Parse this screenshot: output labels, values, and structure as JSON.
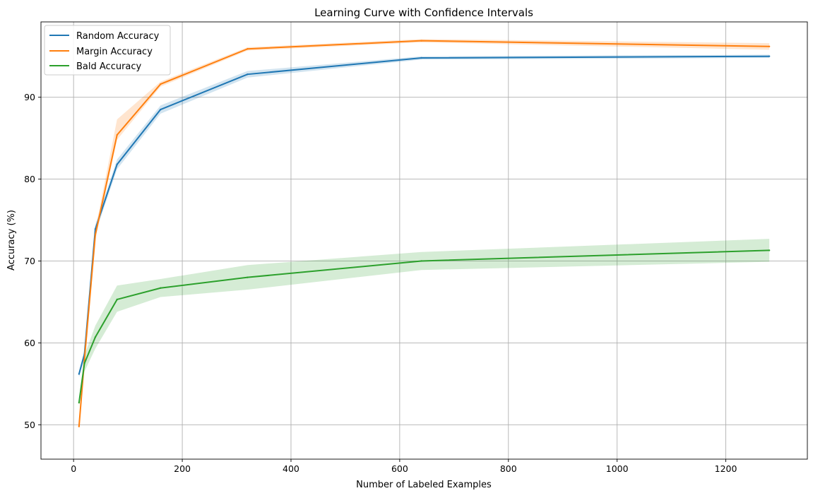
{
  "chart_data": {
    "type": "line",
    "title": "Learning Curve with Confidence Intervals",
    "xlabel": "Number of Labeled Examples",
    "ylabel": "Accuracy (%)",
    "xlim": [
      -60,
      1350
    ],
    "ylim": [
      45.8,
      99.2
    ],
    "xticks": [
      0,
      200,
      400,
      600,
      800,
      1000,
      1200
    ],
    "yticks": [
      50,
      60,
      70,
      80,
      90
    ],
    "grid": true,
    "legend_position": "top-left",
    "x": [
      10,
      20,
      40,
      80,
      160,
      320,
      640,
      1280
    ],
    "series": [
      {
        "name": "Random Accuracy",
        "color": "#1f77b4",
        "values": [
          56.2,
          58.6,
          73.9,
          81.8,
          88.5,
          92.8,
          94.8,
          95.0
        ],
        "ci_lower": [
          55.8,
          58.1,
          73.4,
          81.2,
          88.0,
          92.4,
          94.6,
          94.8
        ],
        "ci_upper": [
          56.6,
          59.1,
          74.4,
          82.4,
          89.0,
          93.2,
          95.0,
          95.2
        ]
      },
      {
        "name": "Margin Accuracy",
        "color": "#ff7f0e",
        "values": [
          49.8,
          58.0,
          73.2,
          85.4,
          91.6,
          95.9,
          96.9,
          96.2
        ],
        "ci_lower": [
          49.3,
          57.5,
          72.6,
          84.8,
          91.3,
          95.7,
          96.7,
          95.8
        ],
        "ci_upper": [
          50.3,
          58.5,
          73.8,
          87.3,
          91.9,
          96.1,
          97.1,
          96.6
        ]
      },
      {
        "name": "Bald Accuracy",
        "color": "#2ca02c",
        "values": [
          52.7,
          57.5,
          60.7,
          65.3,
          66.7,
          68.0,
          70.0,
          71.3
        ],
        "ci_lower": [
          52.3,
          56.5,
          59.3,
          63.8,
          65.6,
          66.5,
          68.9,
          69.9
        ],
        "ci_upper": [
          53.1,
          58.5,
          62.1,
          67.0,
          67.8,
          69.5,
          71.1,
          72.7
        ]
      }
    ]
  }
}
